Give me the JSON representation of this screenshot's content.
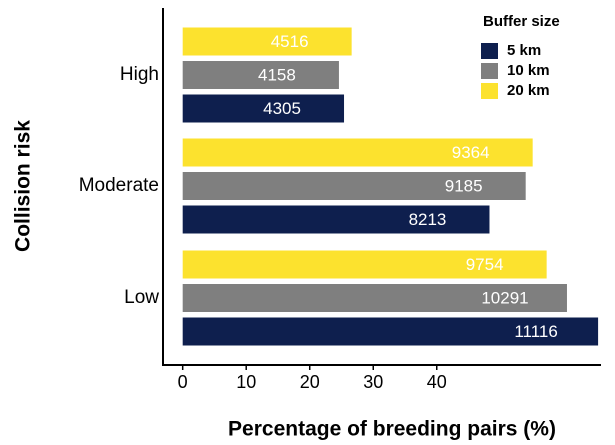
{
  "chart_data": {
    "type": "bar",
    "orientation": "horizontal",
    "x_label": "Percentage of breeding pairs (%)",
    "y_label": "Collision risk",
    "categories": [
      "High",
      "Moderate",
      "Low"
    ],
    "legend_title": "Buffer size",
    "series": [
      {
        "name": "5 km",
        "color": "#0e1f4e",
        "values": [
          25.4,
          48.3,
          65.4
        ],
        "counts": [
          4305,
          8213,
          11116
        ]
      },
      {
        "name": "10 km",
        "color": "#7f7f7f",
        "values": [
          24.6,
          54.0,
          60.5
        ],
        "counts": [
          4158,
          9185,
          10291
        ]
      },
      {
        "name": "20 km",
        "color": "#fce22e",
        "values": [
          26.6,
          55.1,
          57.3
        ],
        "counts": [
          4516,
          9364,
          9754
        ]
      }
    ],
    "xlim": [
      -3.1,
      65.7
    ],
    "xticks": [
      0,
      10,
      20,
      30,
      40
    ]
  }
}
